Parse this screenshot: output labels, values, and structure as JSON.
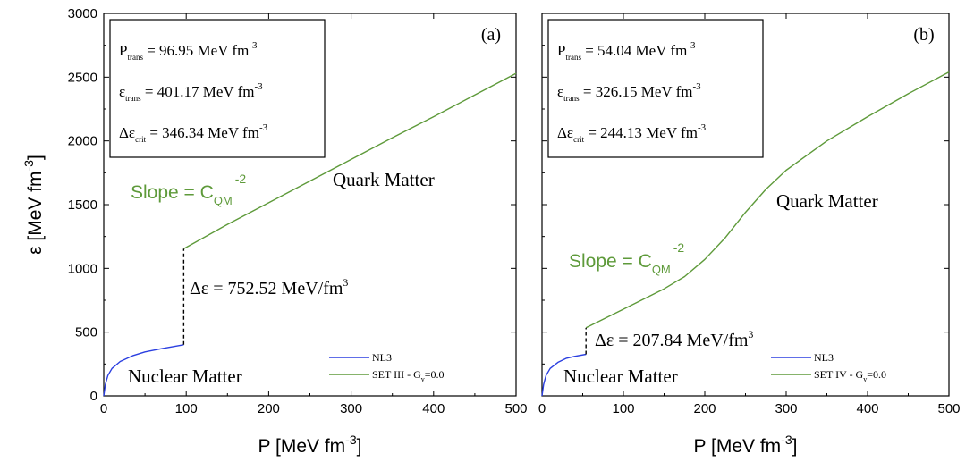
{
  "chart_data": [
    {
      "type": "line",
      "panel_label": "(a)",
      "xlabel": "P [MeV fm",
      "xlabel_sup": "-3",
      "xlabel_end": "]",
      "ylabel": "ε [MeV fm",
      "ylabel_sup": "-3",
      "ylabel_end": "]",
      "xlim": [
        0,
        500
      ],
      "ylim": [
        0,
        3000
      ],
      "xticks": [
        0,
        100,
        200,
        300,
        400,
        500
      ],
      "yticks": [
        0,
        500,
        1000,
        1500,
        2000,
        2500,
        3000
      ],
      "series": [
        {
          "name": "NL3",
          "color": "#2b3fe0",
          "x": [
            0,
            2,
            5,
            10,
            20,
            35,
            50,
            70,
            96.95
          ],
          "y": [
            0,
            90,
            160,
            215,
            270,
            315,
            345,
            370,
            401.17
          ]
        },
        {
          "name": "SET III - G",
          "name_sub": "v",
          "name_end": "=0.0",
          "color": "#5e9a3a",
          "x": [
            96.95,
            150,
            200,
            250,
            300,
            350,
            400,
            450,
            500
          ],
          "y": [
            1153.69,
            1345,
            1515,
            1685,
            1855,
            2025,
            2190,
            2360,
            2530
          ]
        }
      ],
      "transition": {
        "x": 96.95,
        "y_from": 401.17,
        "y_to": 1153.69,
        "style": "dashed",
        "color": "#000000"
      },
      "infobox": [
        {
          "sym": "P",
          "sub": "trans",
          "rest": " = 96.95 MeV fm",
          "sup": "-3"
        },
        {
          "sym": "ε",
          "sub": "trans",
          "rest": " = 401.17 MeV fm",
          "sup": "-3"
        },
        {
          "sym": "Δε",
          "sub": "crit",
          "rest": " = 346.34 MeV fm",
          "sup": "-3"
        }
      ],
      "annotations": {
        "quark": "Quark Matter",
        "nuclear": "Nuclear Matter",
        "slope_main": "Slope = C",
        "slope_sub": "QM",
        "slope_sup": "-2",
        "delta_main": "Δε = 752.52 MeV/fm",
        "delta_sup": "3"
      }
    },
    {
      "type": "line",
      "panel_label": "(b)",
      "xlabel": "P [MeV fm",
      "xlabel_sup": "-3",
      "xlabel_end": "]",
      "xlim": [
        0,
        500
      ],
      "ylim": [
        0,
        3000
      ],
      "xticks": [
        0,
        100,
        200,
        300,
        400,
        500
      ],
      "yticks": [
        0,
        500,
        1000,
        1500,
        2000,
        2500,
        3000
      ],
      "series": [
        {
          "name": "NL3",
          "color": "#2b3fe0",
          "x": [
            0,
            2,
            5,
            10,
            20,
            30,
            40,
            54.04
          ],
          "y": [
            0,
            90,
            160,
            215,
            265,
            295,
            310,
            326.15
          ]
        },
        {
          "name": "SET IV - G",
          "name_sub": "v",
          "name_end": "=0.0",
          "color": "#5e9a3a",
          "x": [
            54.04,
            100,
            150,
            175,
            200,
            225,
            250,
            275,
            300,
            350,
            400,
            450,
            500
          ],
          "y": [
            534,
            680,
            840,
            935,
            1070,
            1240,
            1440,
            1620,
            1770,
            2000,
            2190,
            2370,
            2540
          ]
        }
      ],
      "transition": {
        "x": 54.04,
        "y_from": 326.15,
        "y_to": 534,
        "style": "dashed",
        "color": "#000000"
      },
      "infobox": [
        {
          "sym": "P",
          "sub": "trans",
          "rest": " = 54.04 MeV fm",
          "sup": "-3"
        },
        {
          "sym": "ε",
          "sub": "trans",
          "rest": " =  326.15 MeV fm",
          "sup": "-3"
        },
        {
          "sym": "Δε",
          "sub": "crit",
          "rest": " =  244.13 MeV fm",
          "sup": "-3"
        }
      ],
      "annotations": {
        "quark": "Quark Matter",
        "nuclear": "Nuclear Matter",
        "slope_main": "Slope = C",
        "slope_sub": "QM",
        "slope_sup": "-2",
        "delta_main": "Δε = 207.84 MeV/fm",
        "delta_sup": "3"
      }
    }
  ]
}
